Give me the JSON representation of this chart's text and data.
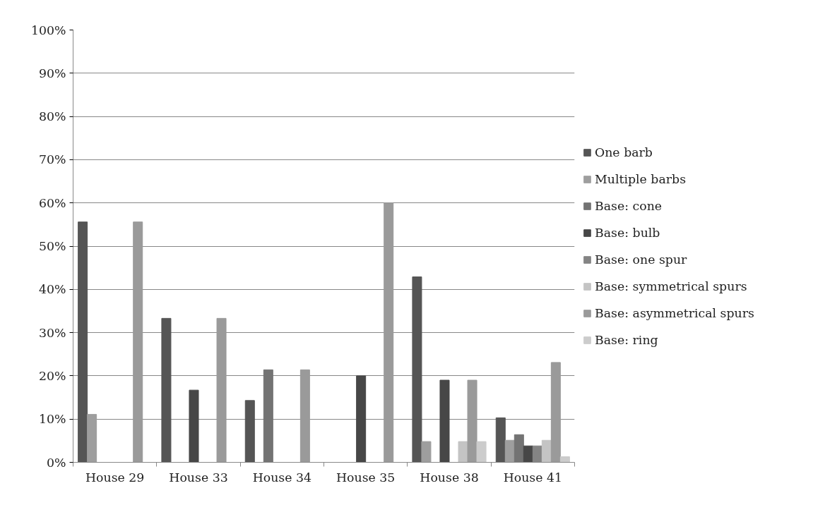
{
  "chart_data": {
    "type": "bar",
    "categories": [
      "House 29",
      "House 33",
      "House 34",
      "House 35",
      "House 38",
      "House 41"
    ],
    "series": [
      {
        "name": "One barb",
        "color": "#555555",
        "values": [
          55.6,
          33.3,
          14.3,
          0,
          42.9,
          10.3
        ]
      },
      {
        "name": "Multiple barbs",
        "color": "#9e9e9e",
        "values": [
          11.1,
          0,
          0,
          0,
          4.8,
          5.1
        ]
      },
      {
        "name": "Base: cone",
        "color": "#737373",
        "values": [
          0,
          0,
          21.4,
          0,
          0,
          6.4
        ]
      },
      {
        "name": "Base: bulb",
        "color": "#474747",
        "values": [
          0,
          16.7,
          0,
          20,
          19.0,
          3.8
        ]
      },
      {
        "name": "Base: one spur",
        "color": "#848484",
        "values": [
          0,
          0,
          0,
          0,
          0,
          3.8
        ]
      },
      {
        "name": "Base: symmetrical spurs",
        "color": "#c4c4c4",
        "values": [
          0,
          0,
          0,
          0,
          4.8,
          5.1
        ]
      },
      {
        "name": "Base: asymmetrical spurs",
        "color": "#9a9a9a",
        "values": [
          55.6,
          33.3,
          21.4,
          60,
          19.0,
          23.1
        ]
      },
      {
        "name": "Base: ring",
        "color": "#cccccc",
        "values": [
          0,
          0,
          0,
          0,
          4.8,
          1.3
        ]
      }
    ],
    "ylim": [
      0,
      100
    ],
    "yticks": [
      {
        "value": 0,
        "label": "0%"
      },
      {
        "value": 10,
        "label": "10%"
      },
      {
        "value": 20,
        "label": "20%"
      },
      {
        "value": 30,
        "label": "30%"
      },
      {
        "value": 40,
        "label": "40%"
      },
      {
        "value": 50,
        "label": "50%"
      },
      {
        "value": 60,
        "label": "60%"
      },
      {
        "value": 70,
        "label": "70%"
      },
      {
        "value": 80,
        "label": "80%"
      },
      {
        "value": 90,
        "label": "90%"
      },
      {
        "value": 100,
        "label": "100%"
      }
    ],
    "grid": "y",
    "legend": "right"
  }
}
